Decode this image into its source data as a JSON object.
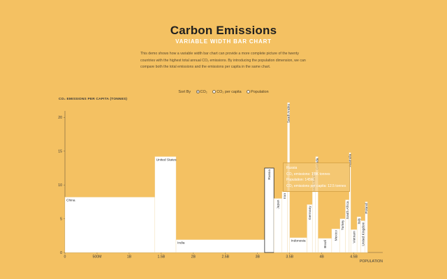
{
  "header": {
    "title": "Carbon Emissions",
    "subtitle": "VARIABLE WIDTH BAR CHART",
    "description": "This demo shows how a variable width bar chart can provide a more complete picture of the twenty countries with the highest total annual CO₂ emissions. By introducing the population dimension, we can compare both the total emissions and the emissions per capita in the same chart."
  },
  "sort": {
    "label": "Sort By",
    "options": [
      "CO₂",
      "CO₂ per capita",
      "Population"
    ],
    "selected": "CO₂"
  },
  "tooltip": {
    "title": "Russia",
    "line1": "CO₂ emissions: 1.8K tonnes",
    "line2": "Population: 145M",
    "line3": "CO₂ emissions per capita: 12.5 tonnes"
  },
  "colors": {
    "background": "#f4c162",
    "bar": "#ffffff",
    "highlight": "#e9b85a"
  },
  "chart_data": {
    "type": "bar",
    "title": "",
    "ylabel": "CO₂ EMISSIONS PER CAPITA (TONNES)",
    "xlabel": "POPULATION",
    "xlim": [
      0,
      4950000000
    ],
    "ylim": [
      0,
      22
    ],
    "xticks": [
      "0",
      "500M",
      "1B",
      "1.5B",
      "2B",
      "2.5B",
      "3B",
      "3.5B",
      "4B",
      "4.5B"
    ],
    "yticks": [
      "0",
      "5",
      "10",
      "15",
      "20"
    ],
    "highlighted": "Russia",
    "bars": [
      {
        "label": "China",
        "population": 1400000000,
        "per_capita": 8.2
      },
      {
        "label": "United States",
        "population": 330000000,
        "per_capita": 14.2
      },
      {
        "label": "India",
        "population": 1380000000,
        "per_capita": 1.9
      },
      {
        "label": "Russia",
        "population": 145000000,
        "per_capita": 12.5
      },
      {
        "label": "Japan",
        "population": 126000000,
        "per_capita": 8.0
      },
      {
        "label": "Iran",
        "population": 84000000,
        "per_capita": 9.0
      },
      {
        "label": "Saudi Arabia",
        "population": 35000000,
        "per_capita": 22.2
      },
      {
        "label": "Indonesia",
        "population": 270000000,
        "per_capita": 2.2
      },
      {
        "label": "Germany",
        "population": 83000000,
        "per_capita": 7.1
      },
      {
        "label": "South Korea",
        "population": 52000000,
        "per_capita": 11.9
      },
      {
        "label": "Canada",
        "population": 38000000,
        "per_capita": 14.2
      },
      {
        "label": "Brazil",
        "population": 212000000,
        "per_capita": 2.1
      },
      {
        "label": "Mexico",
        "population": 129000000,
        "per_capita": 3.5
      },
      {
        "label": "Turkey",
        "population": 84000000,
        "per_capita": 5.0
      },
      {
        "label": "South Africa",
        "population": 59000000,
        "per_capita": 7.8
      },
      {
        "label": "Australia",
        "population": 25000000,
        "per_capita": 14.8
      },
      {
        "label": "Vietnam",
        "population": 97000000,
        "per_capita": 3.4
      },
      {
        "label": "Italy",
        "population": 60000000,
        "per_capita": 5.3
      },
      {
        "label": "United Kingdom",
        "population": 67000000,
        "per_capita": 4.7
      },
      {
        "label": "Poland",
        "population": 38000000,
        "per_capita": 7.5
      }
    ]
  }
}
